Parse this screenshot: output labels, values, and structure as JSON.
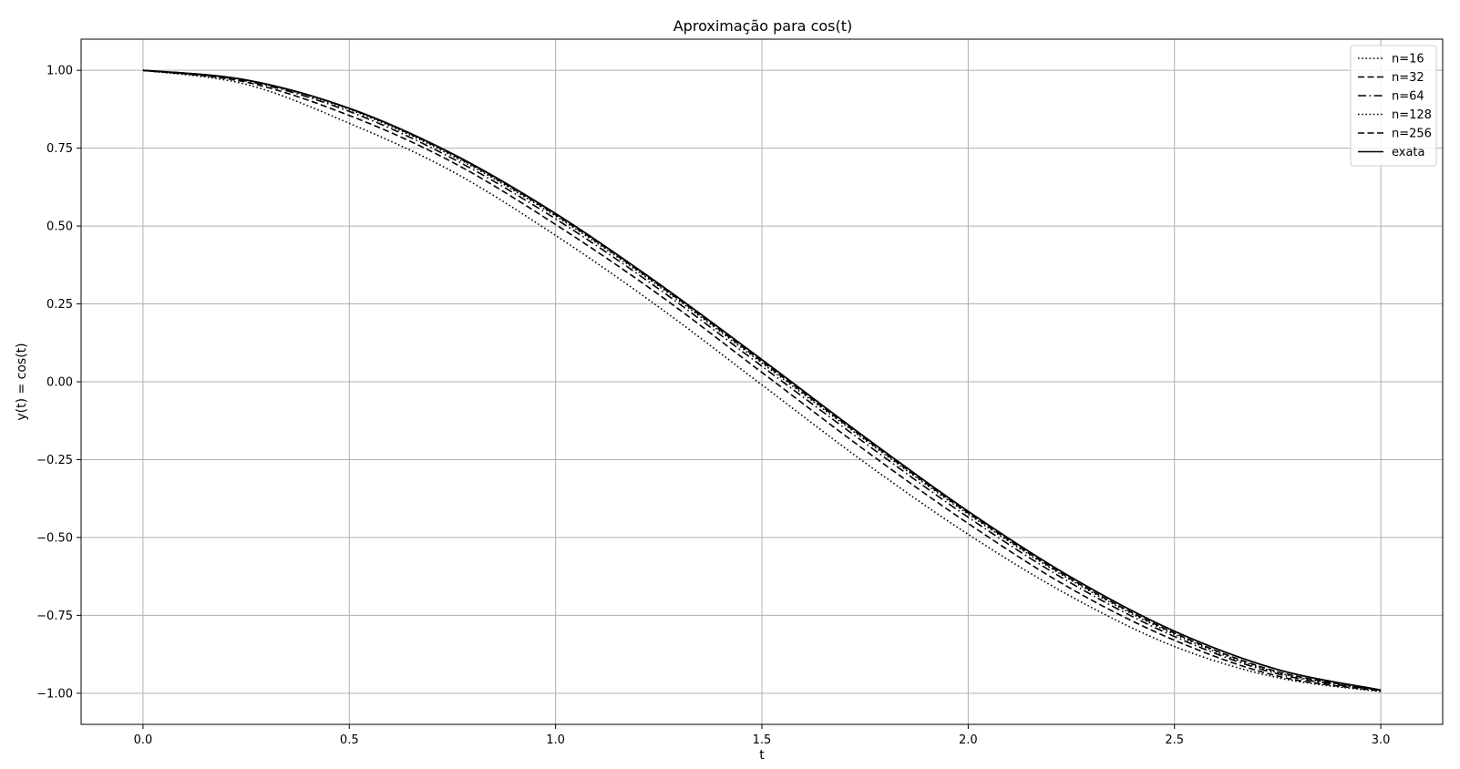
{
  "chart_data": {
    "type": "line",
    "title": "Aproximação para cos(t)",
    "xlabel": "t",
    "ylabel": "y(t) = cos(t)",
    "xlim": [
      -0.15,
      3.15
    ],
    "ylim": [
      -1.1,
      1.1
    ],
    "xticks": [
      0.0,
      0.5,
      1.0,
      1.5,
      2.0,
      2.5,
      3.0
    ],
    "xtick_labels": [
      "0.0",
      "0.5",
      "1.0",
      "1.5",
      "2.0",
      "2.5",
      "3.0"
    ],
    "yticks": [
      1.0,
      0.75,
      0.5,
      0.25,
      0.0,
      -0.25,
      -0.5,
      -0.75,
      -1.0
    ],
    "ytick_labels": [
      "1.00",
      "0.75",
      "0.50",
      "0.25",
      "0.00",
      "−0.25",
      "−0.50",
      "−0.75",
      "−1.00"
    ],
    "grid": true,
    "legend_position": "top-right",
    "line_color": "#000000",
    "grid_color": "#b0b0b0",
    "x": [
      0.0,
      0.25,
      0.5,
      0.75,
      1.0,
      1.25,
      1.5,
      1.75,
      2.0,
      2.25,
      2.5,
      2.75,
      3.0
    ],
    "series": [
      {
        "name": "n=16",
        "dash": "dotted",
        "values": [
          1.0,
          0.955,
          0.83,
          0.675,
          0.47,
          0.24,
          -0.01,
          -0.26,
          -0.49,
          -0.69,
          -0.85,
          -0.95,
          -0.995
        ]
      },
      {
        "name": "n=32",
        "dash": "dashed",
        "values": [
          1.0,
          0.962,
          0.855,
          0.705,
          0.505,
          0.28,
          0.03,
          -0.22,
          -0.455,
          -0.665,
          -0.83,
          -0.945,
          -0.993
        ]
      },
      {
        "name": "n=64",
        "dash": "dashdot",
        "values": [
          1.0,
          0.966,
          0.868,
          0.717,
          0.523,
          0.298,
          0.05,
          -0.197,
          -0.435,
          -0.647,
          -0.818,
          -0.938,
          -0.991
        ]
      },
      {
        "name": "n=128",
        "dash": "dotted",
        "values": [
          1.0,
          0.968,
          0.874,
          0.725,
          0.532,
          0.307,
          0.06,
          -0.187,
          -0.425,
          -0.638,
          -0.811,
          -0.934,
          -0.99
        ]
      },
      {
        "name": "n=256",
        "dash": "dashed",
        "values": [
          1.0,
          0.969,
          0.877,
          0.729,
          0.536,
          0.311,
          0.065,
          -0.183,
          -0.421,
          -0.634,
          -0.807,
          -0.931,
          -0.99
        ]
      },
      {
        "name": "exata",
        "dash": "solid",
        "values": [
          1.0,
          0.969,
          0.878,
          0.732,
          0.54,
          0.315,
          0.071,
          -0.178,
          -0.416,
          -0.628,
          -0.801,
          -0.924,
          -0.99
        ]
      }
    ]
  }
}
